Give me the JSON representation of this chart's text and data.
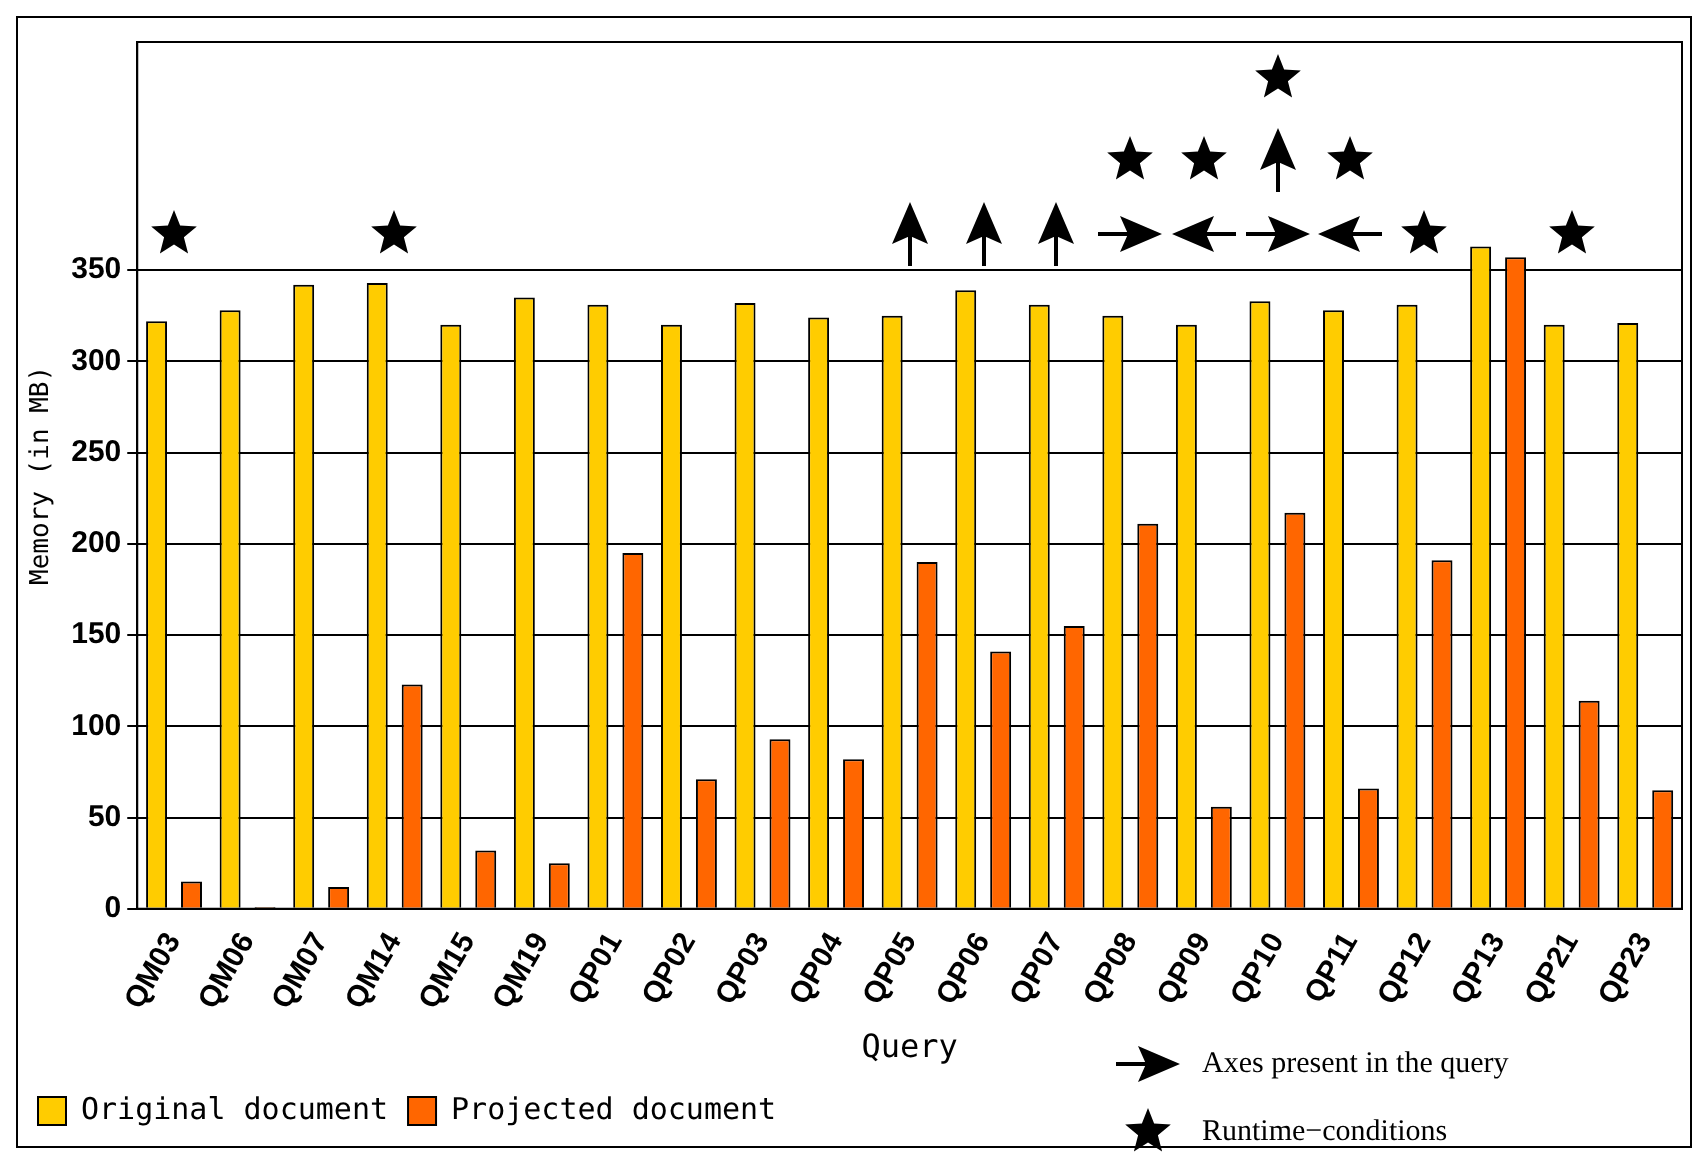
{
  "chart_data": {
    "type": "bar",
    "xlabel": "Query",
    "ylabel": "Memory (in MB)",
    "categories": [
      "QM03",
      "QM06",
      "QM07",
      "QM14",
      "QM15",
      "QM19",
      "QP01",
      "QP02",
      "QP03",
      "QP04",
      "QP05",
      "QP06",
      "QP07",
      "QP08",
      "QP09",
      "QP10",
      "QP11",
      "QP12",
      "QP13",
      "QP21",
      "QP23"
    ],
    "series": [
      {
        "name": "Original document",
        "color": "#ffcc00",
        "values": [
          322,
          328,
          342,
          343,
          320,
          335,
          331,
          320,
          332,
          324,
          325,
          339,
          331,
          325,
          320,
          333,
          328,
          331,
          363,
          320,
          321
        ]
      },
      {
        "name": "Projected document",
        "color": "#ff6600",
        "values": [
          15,
          1,
          12,
          123,
          32,
          25,
          195,
          71,
          93,
          82,
          190,
          141,
          155,
          211,
          56,
          217,
          66,
          191,
          357,
          114,
          65
        ]
      }
    ],
    "ylim": [
      0,
      475
    ],
    "yticks": [
      0,
      50,
      100,
      150,
      200,
      250,
      300,
      350
    ],
    "grid": "y",
    "legend": "bottom left",
    "annotations": [
      "Axes present in the query",
      "Runtime−conditions"
    ]
  }
}
